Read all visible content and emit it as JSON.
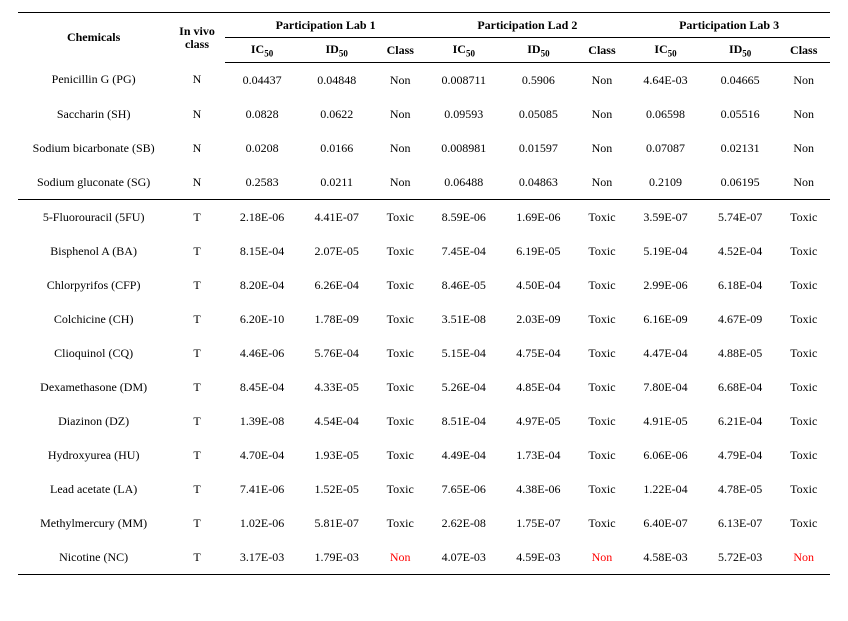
{
  "header": {
    "chemicals": "Chemicals",
    "invivo": "In vivo class",
    "groups": [
      "Participation  Lab  1",
      "Participation  Lad  2",
      "Participation  Lab  3"
    ],
    "sub_ic": "IC",
    "sub_id": "ID",
    "sub_50": "50",
    "sub_class": "Class"
  },
  "non_rows": [
    {
      "chem": "Penicillin G (PG)",
      "iv": "N",
      "l1": {
        "ic": "0.04437",
        "id": "0.04848",
        "cl": "Non"
      },
      "l2": {
        "ic": "0.008711",
        "id": "0.5906",
        "cl": "Non"
      },
      "l3": {
        "ic": "4.64E-03",
        "id": "0.04665",
        "cl": "Non"
      }
    },
    {
      "chem": "Saccharin (SH)",
      "iv": "N",
      "l1": {
        "ic": "0.0828",
        "id": "0.0622",
        "cl": "Non"
      },
      "l2": {
        "ic": "0.09593",
        "id": "0.05085",
        "cl": "Non"
      },
      "l3": {
        "ic": "0.06598",
        "id": "0.05516",
        "cl": "Non"
      }
    },
    {
      "chem": "Sodium bicarbonate (SB)",
      "iv": "N",
      "l1": {
        "ic": "0.0208",
        "id": "0.0166",
        "cl": "Non"
      },
      "l2": {
        "ic": "0.008981",
        "id": "0.01597",
        "cl": "Non"
      },
      "l3": {
        "ic": "0.07087",
        "id": "0.02131",
        "cl": "Non"
      }
    },
    {
      "chem": "Sodium gluconate (SG)",
      "iv": "N",
      "l1": {
        "ic": "0.2583",
        "id": "0.0211",
        "cl": "Non"
      },
      "l2": {
        "ic": "0.06488",
        "id": "0.04863",
        "cl": "Non"
      },
      "l3": {
        "ic": "0.2109",
        "id": "0.06195",
        "cl": "Non"
      }
    }
  ],
  "tox_rows": [
    {
      "chem": "5-Fluorouracil (5FU)",
      "iv": "T",
      "l1": {
        "ic": "2.18E-06",
        "id": "4.41E-07",
        "cl": "Toxic"
      },
      "l2": {
        "ic": "8.59E-06",
        "id": "1.69E-06",
        "cl": "Toxic"
      },
      "l3": {
        "ic": "3.59E-07",
        "id": "5.74E-07",
        "cl": "Toxic"
      }
    },
    {
      "chem": "Bisphenol A (BA)",
      "iv": "T",
      "l1": {
        "ic": "8.15E-04",
        "id": "2.07E-05",
        "cl": "Toxic"
      },
      "l2": {
        "ic": "7.45E-04",
        "id": "6.19E-05",
        "cl": "Toxic"
      },
      "l3": {
        "ic": "5.19E-04",
        "id": "4.52E-04",
        "cl": "Toxic"
      }
    },
    {
      "chem": "Chlorpyrifos (CFP)",
      "iv": "T",
      "l1": {
        "ic": "8.20E-04",
        "id": "6.26E-04",
        "cl": "Toxic"
      },
      "l2": {
        "ic": "8.46E-05",
        "id": "4.50E-04",
        "cl": "Toxic"
      },
      "l3": {
        "ic": "2.99E-06",
        "id": "6.18E-04",
        "cl": "Toxic"
      }
    },
    {
      "chem": "Colchicine (CH)",
      "iv": "T",
      "l1": {
        "ic": "6.20E-10",
        "id": "1.78E-09",
        "cl": "Toxic"
      },
      "l2": {
        "ic": "3.51E-08",
        "id": "2.03E-09",
        "cl": "Toxic"
      },
      "l3": {
        "ic": "6.16E-09",
        "id": "4.67E-09",
        "cl": "Toxic"
      }
    },
    {
      "chem": "Clioquinol (CQ)",
      "iv": "T",
      "l1": {
        "ic": "4.46E-06",
        "id": "5.76E-04",
        "cl": "Toxic"
      },
      "l2": {
        "ic": "5.15E-04",
        "id": "4.75E-04",
        "cl": "Toxic"
      },
      "l3": {
        "ic": "4.47E-04",
        "id": "4.88E-05",
        "cl": "Toxic"
      }
    },
    {
      "chem": "Dexamethasone (DM)",
      "iv": "T",
      "l1": {
        "ic": "8.45E-04",
        "id": "4.33E-05",
        "cl": "Toxic"
      },
      "l2": {
        "ic": "5.26E-04",
        "id": "4.85E-04",
        "cl": "Toxic"
      },
      "l3": {
        "ic": "7.80E-04",
        "id": "6.68E-04",
        "cl": "Toxic"
      }
    },
    {
      "chem": "Diazinon (DZ)",
      "iv": "T",
      "l1": {
        "ic": "1.39E-08",
        "id": "4.54E-04",
        "cl": "Toxic"
      },
      "l2": {
        "ic": "8.51E-04",
        "id": "4.97E-05",
        "cl": "Toxic"
      },
      "l3": {
        "ic": "4.91E-05",
        "id": "6.21E-04",
        "cl": "Toxic"
      }
    },
    {
      "chem": "Hydroxyurea (HU)",
      "iv": "T",
      "l1": {
        "ic": "4.70E-04",
        "id": "1.93E-05",
        "cl": "Toxic"
      },
      "l2": {
        "ic": "4.49E-04",
        "id": "1.73E-04",
        "cl": "Toxic"
      },
      "l3": {
        "ic": "6.06E-06",
        "id": "4.79E-04",
        "cl": "Toxic"
      }
    },
    {
      "chem": "Lead acetate (LA)",
      "iv": "T",
      "l1": {
        "ic": "7.41E-06",
        "id": "1.52E-05",
        "cl": "Toxic"
      },
      "l2": {
        "ic": "7.65E-06",
        "id": "4.38E-06",
        "cl": "Toxic"
      },
      "l3": {
        "ic": "1.22E-04",
        "id": "4.78E-05",
        "cl": "Toxic"
      }
    },
    {
      "chem": "Methylmercury (MM)",
      "iv": "T",
      "l1": {
        "ic": "1.02E-06",
        "id": "5.81E-07",
        "cl": "Toxic"
      },
      "l2": {
        "ic": "2.62E-08",
        "id": "1.75E-07",
        "cl": "Toxic"
      },
      "l3": {
        "ic": "6.40E-07",
        "id": "6.13E-07",
        "cl": "Toxic"
      }
    },
    {
      "chem": "Nicotine (NC)",
      "iv": "T",
      "l1": {
        "ic": "3.17E-03",
        "id": "1.79E-03",
        "cl": "Non",
        "red": true
      },
      "l2": {
        "ic": "4.07E-03",
        "id": "4.59E-03",
        "cl": "Non",
        "red": true
      },
      "l3": {
        "ic": "4.58E-03",
        "id": "5.72E-03",
        "cl": "Non",
        "red": true
      }
    }
  ]
}
